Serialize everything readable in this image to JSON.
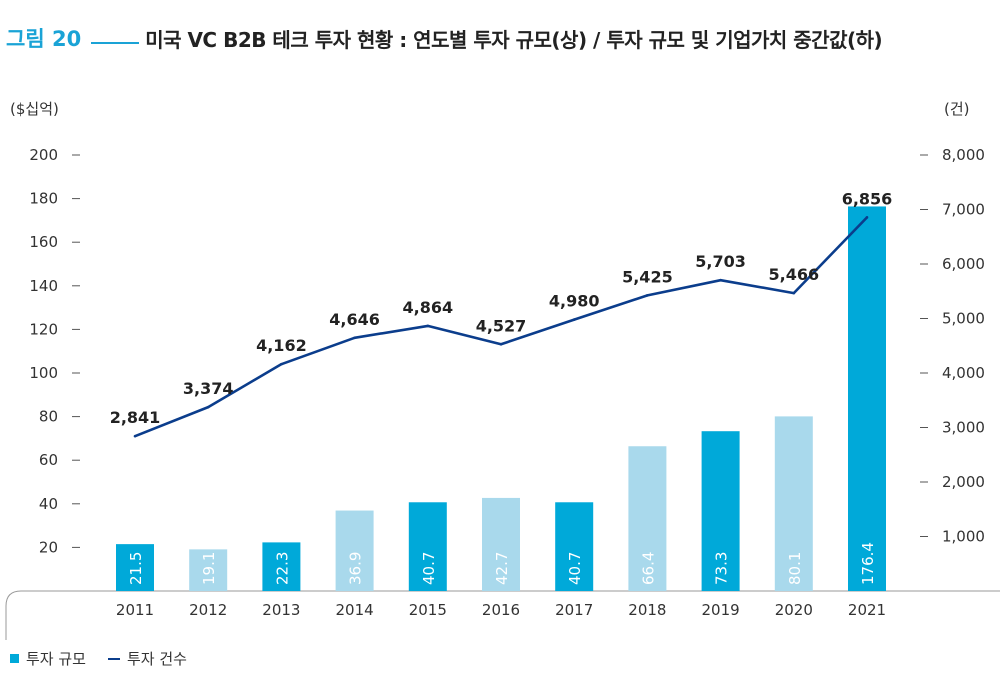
{
  "header": {
    "figure_label": "그림 20",
    "title": "미국 VC B2B 테크 투자 현황 : 연도별 투자 규모(상) / 투자 규모 및 기업가치 중간값(하)"
  },
  "colors": {
    "bar_dark": "#00a9d9",
    "bar_light": "#a9d9ec",
    "line": "#0b3d8c",
    "accent": "#1aa3d6"
  },
  "chart_data": {
    "type": "bar",
    "categories": [
      "2011",
      "2012",
      "2013",
      "2014",
      "2015",
      "2016",
      "2017",
      "2018",
      "2019",
      "2020",
      "2021"
    ],
    "left_axis_unit": "($십억)",
    "right_axis_unit": "(건)",
    "ylim_left": [
      0,
      200
    ],
    "yticks_left": [
      "20",
      "40",
      "60",
      "80",
      "100",
      "120",
      "140",
      "160",
      "180",
      "200"
    ],
    "ylim_right": [
      0,
      8000
    ],
    "yticks_right": [
      "1,000",
      "2,000",
      "3,000",
      "4,000",
      "5,000",
      "6,000",
      "7,000",
      "8,000"
    ],
    "series": [
      {
        "name": "투자 규모",
        "type": "bar",
        "axis": "left",
        "values": [
          21.5,
          19.1,
          22.3,
          36.9,
          40.7,
          42.7,
          40.7,
          66.4,
          73.3,
          80.1,
          176.4
        ],
        "labels": [
          "21.5",
          "19.1",
          "22.3",
          "36.9",
          "40.7",
          "42.7",
          "40.7",
          "66.4",
          "73.3",
          "80.1",
          "176.4"
        ],
        "shade": [
          "dark",
          "light",
          "dark",
          "light",
          "dark",
          "light",
          "dark",
          "light",
          "dark",
          "light",
          "dark"
        ]
      },
      {
        "name": "투자 건수",
        "type": "line",
        "axis": "right",
        "values": [
          2841,
          3374,
          4162,
          4646,
          4864,
          4527,
          4980,
          5425,
          5703,
          5466,
          6856
        ],
        "labels": [
          "2,841",
          "3,374",
          "4,162",
          "4,646",
          "4,864",
          "4,527",
          "4,980",
          "5,425",
          "5,703",
          "5,466",
          "6,856"
        ]
      }
    ],
    "legend_position": "bottom-left"
  }
}
